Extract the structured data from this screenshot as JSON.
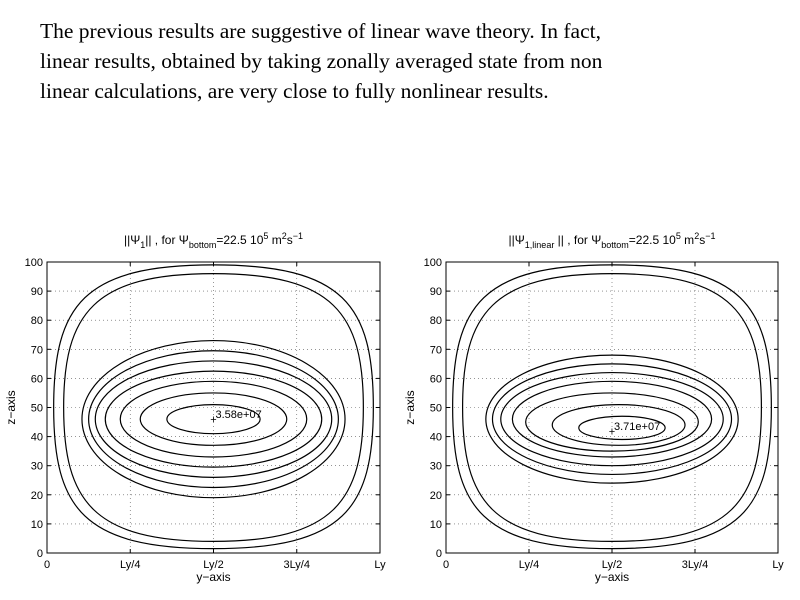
{
  "slide": {
    "lines": [
      "The previous results are suggestive of linear wave theory.  In fact,",
      "linear results, obtained by taking zonally averaged state from non",
      "linear calculations, are very close to fully nonlinear results."
    ]
  },
  "chart_data": [
    {
      "type": "contour",
      "title": "||Ψ1|| , for Ψbottom=22.5 10^5 m^2s^-1",
      "title_parts": {
        "pre": "||Ψ",
        "sub1": "1",
        "mid": "|| , for Ψ",
        "sub2": "bottom",
        "post": "=22.5 10",
        "sup1": "5",
        "unit": " m",
        "sup2": "2",
        "unit2": "s",
        "sup3": "−1"
      },
      "xlabel": "y−axis",
      "ylabel": "z−axis",
      "x_ticks": [
        "0",
        "Ly/4",
        "Ly/2",
        "3Ly/4",
        "Ly"
      ],
      "x_tick_values": [
        0,
        0.25,
        0.5,
        0.75,
        1.0
      ],
      "y_ticks": [
        "0",
        "10",
        "20",
        "30",
        "40",
        "50",
        "60",
        "70",
        "80",
        "90",
        "100"
      ],
      "y_tick_values": [
        0,
        10,
        20,
        30,
        40,
        50,
        60,
        70,
        80,
        90,
        100
      ],
      "xlim": [
        0,
        1
      ],
      "ylim": [
        0,
        100
      ],
      "grid": "dotted",
      "max_label": "3.58e+07",
      "max_point": {
        "x": 0.5,
        "y": 46
      },
      "contours": [
        {
          "cx": 0.5,
          "cy": 46,
          "rx": 0.14,
          "ry": 5
        },
        {
          "cx": 0.5,
          "cy": 46,
          "rx": 0.22,
          "ry": 9
        },
        {
          "cx": 0.5,
          "cy": 46,
          "rx": 0.28,
          "ry": 13
        },
        {
          "cx": 0.5,
          "cy": 46,
          "rx": 0.325,
          "ry": 16.5
        },
        {
          "cx": 0.5,
          "cy": 46,
          "rx": 0.355,
          "ry": 20
        },
        {
          "cx": 0.5,
          "cy": 46,
          "rx": 0.375,
          "ry": 23.5
        },
        {
          "cx": 0.5,
          "cy": 46,
          "rx": 0.395,
          "ry": 27
        }
      ]
    },
    {
      "type": "contour",
      "title": "||Ψ1,linear || , for Ψbottom=22.5 10^5 m^2s^-1",
      "title_parts": {
        "pre": "||Ψ",
        "sub1": "1,linear",
        "mid": " || , for Ψ",
        "sub2": "bottom",
        "post": "=22.5 10",
        "sup1": "5",
        "unit": " m",
        "sup2": "2",
        "unit2": "s",
        "sup3": "−1"
      },
      "xlabel": "y−axis",
      "ylabel": "z−axis",
      "x_ticks": [
        "0",
        "Ly/4",
        "Ly/2",
        "3Ly/4",
        "Ly"
      ],
      "x_tick_values": [
        0,
        0.25,
        0.5,
        0.75,
        1.0
      ],
      "y_ticks": [
        "0",
        "10",
        "20",
        "30",
        "40",
        "50",
        "60",
        "70",
        "80",
        "90",
        "100"
      ],
      "y_tick_values": [
        0,
        10,
        20,
        30,
        40,
        50,
        60,
        70,
        80,
        90,
        100
      ],
      "xlim": [
        0,
        1
      ],
      "ylim": [
        0,
        100
      ],
      "grid": "dotted",
      "max_label": "3.71e+07",
      "max_point": {
        "x": 0.5,
        "y": 42
      },
      "contours": [
        {
          "cx": 0.53,
          "cy": 43,
          "rx": 0.13,
          "ry": 4
        },
        {
          "cx": 0.52,
          "cy": 44,
          "rx": 0.2,
          "ry": 7
        },
        {
          "cx": 0.5,
          "cy": 45,
          "rx": 0.26,
          "ry": 10
        },
        {
          "cx": 0.5,
          "cy": 46,
          "rx": 0.3,
          "ry": 13
        },
        {
          "cx": 0.5,
          "cy": 46,
          "rx": 0.335,
          "ry": 16
        },
        {
          "cx": 0.5,
          "cy": 46,
          "rx": 0.36,
          "ry": 19
        },
        {
          "cx": 0.5,
          "cy": 46,
          "rx": 0.38,
          "ry": 22
        }
      ]
    }
  ]
}
